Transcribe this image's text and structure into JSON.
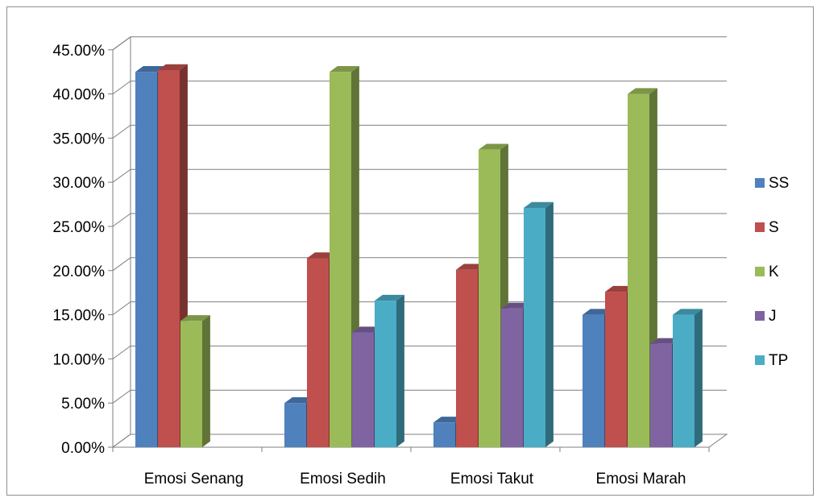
{
  "chart_data": {
    "type": "bar",
    "style": "3d-clustered-column",
    "title": "",
    "xlabel": "",
    "ylabel": "",
    "categories": [
      "Emosi Senang",
      "Emosi Sedih",
      "Emosi Takut",
      "Emosi Marah"
    ],
    "series": [
      {
        "name": "SS",
        "color": "#4f81bd",
        "values": [
          42.5,
          5.0,
          2.8,
          15.0
        ]
      },
      {
        "name": "S",
        "color": "#c0504d",
        "values": [
          42.7,
          21.4,
          20.1,
          17.6
        ]
      },
      {
        "name": "K",
        "color": "#9bbb59",
        "values": [
          14.3,
          42.5,
          33.7,
          40.0
        ]
      },
      {
        "name": "J",
        "color": "#8064a2",
        "values": [
          0,
          13.0,
          15.7,
          11.7
        ]
      },
      {
        "name": "TP",
        "color": "#4bacc6",
        "values": [
          0,
          16.6,
          27.1,
          15.0
        ]
      }
    ],
    "ylim": [
      0,
      45
    ],
    "y_ticks": [
      "0.00%",
      "5.00%",
      "10.00%",
      "15.00%",
      "20.00%",
      "25.00%",
      "30.00%",
      "35.00%",
      "40.00%",
      "45.00%"
    ],
    "grid": true,
    "legend_position": "right"
  }
}
